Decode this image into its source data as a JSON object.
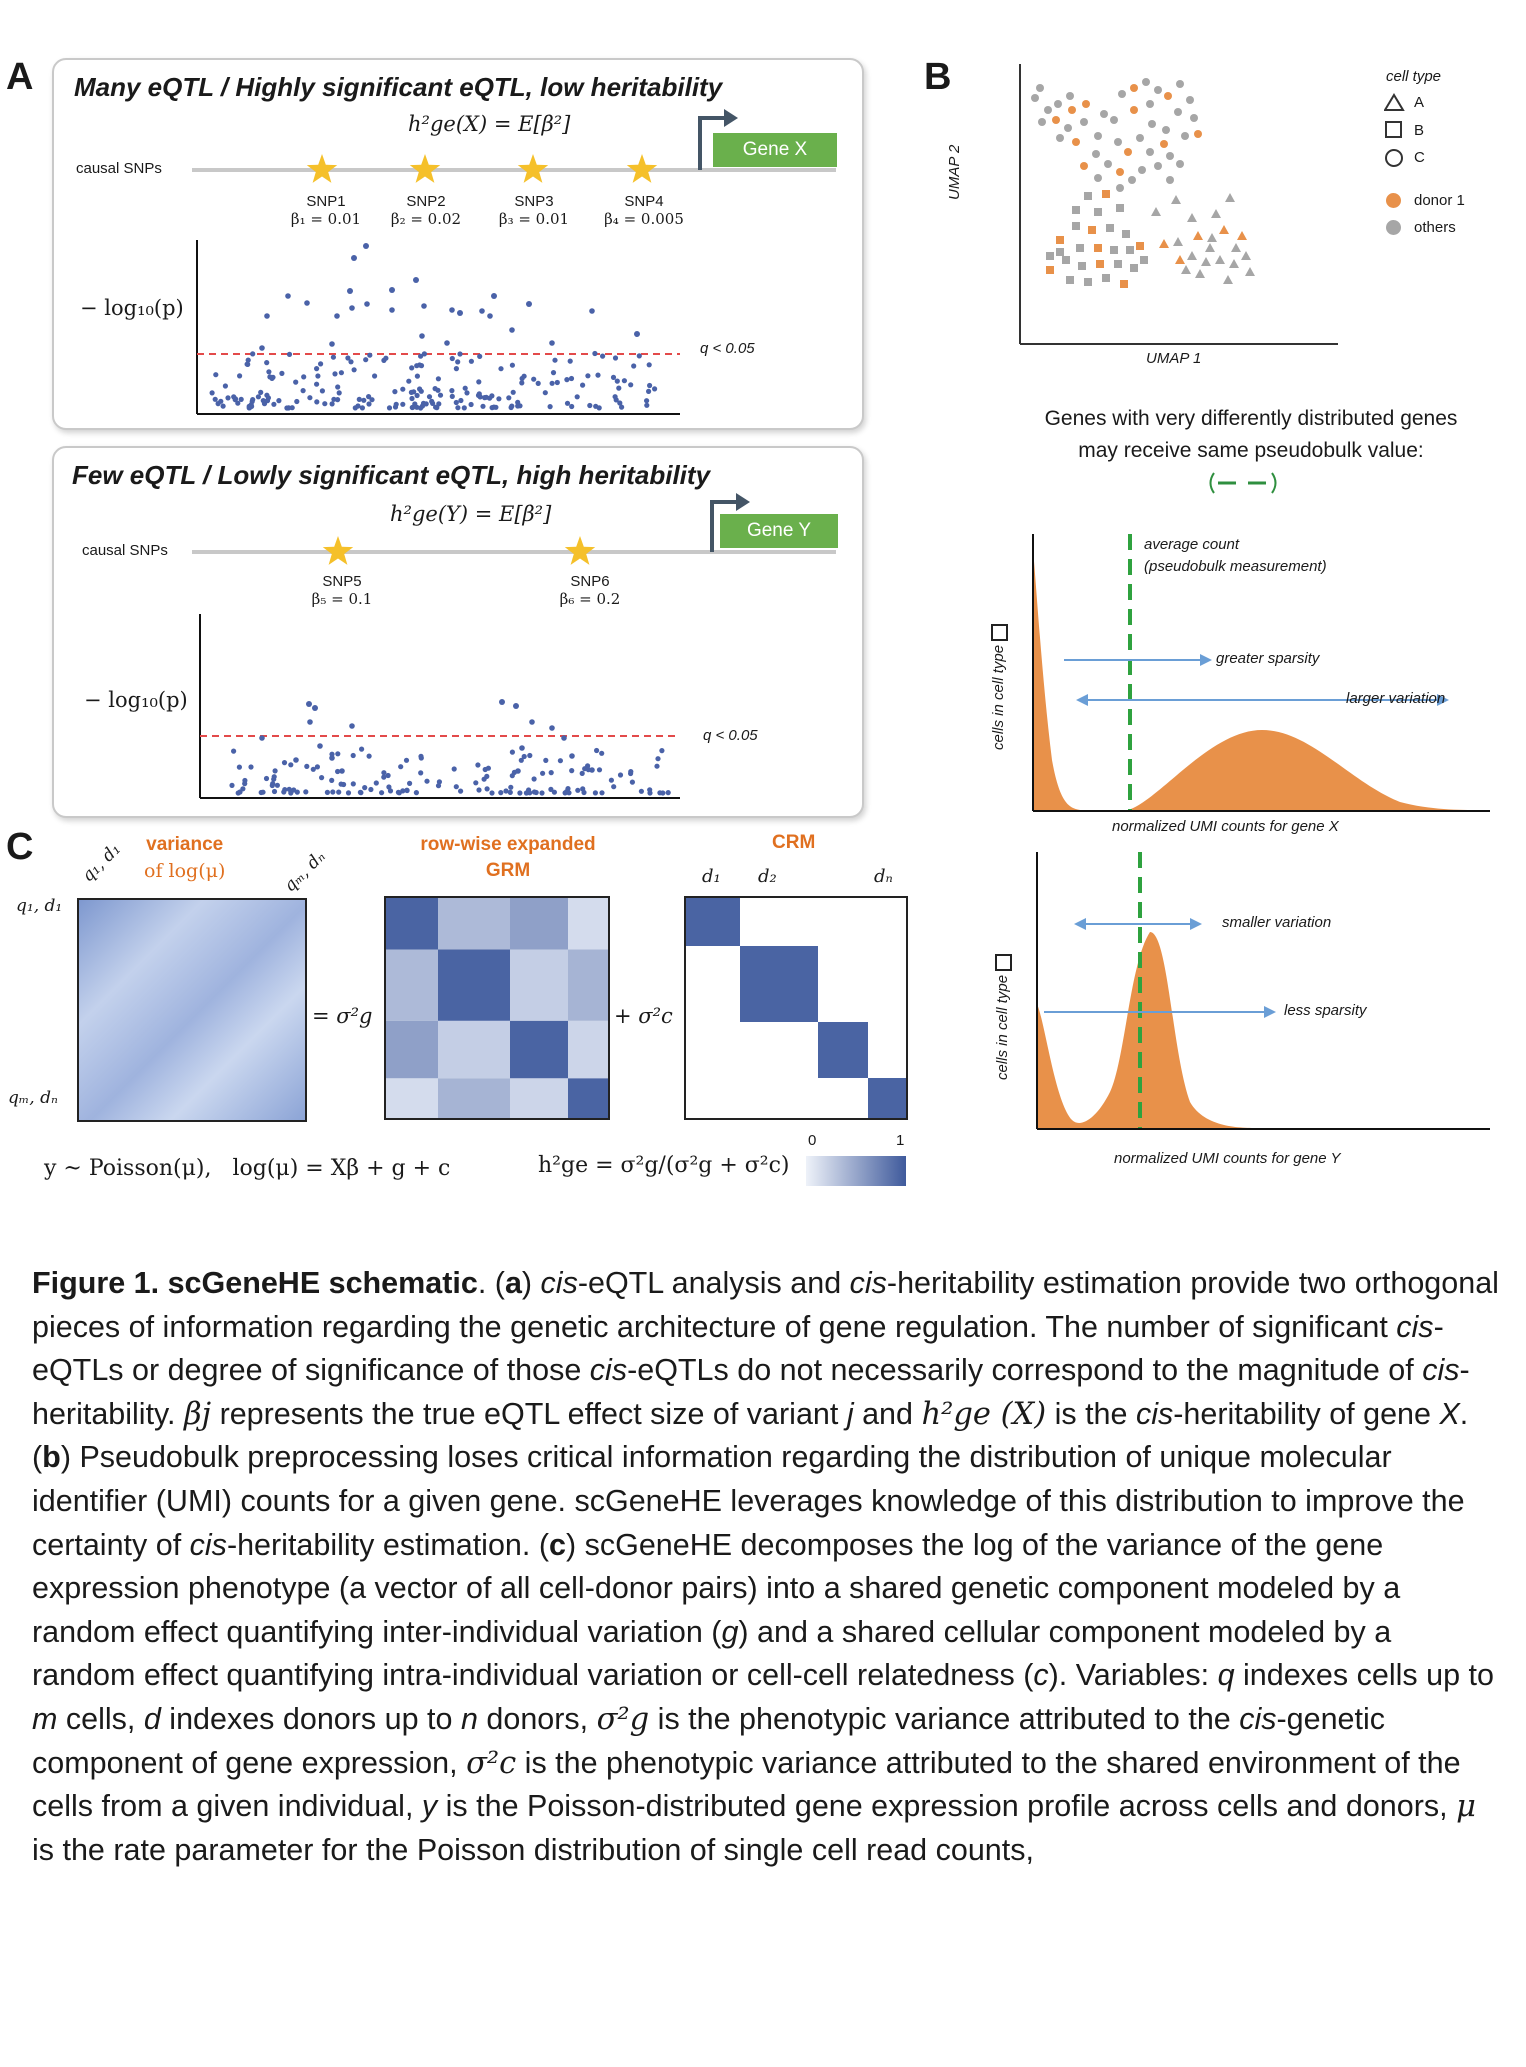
{
  "panel_letters": {
    "a": "A",
    "b": "B",
    "c": "C"
  },
  "panel_a": {
    "top": {
      "title": "Many eQTL / Highly significant eQTL, low heritability",
      "heritability_formula": "h²ge(X) = E[β²]",
      "gene_label": "Gene X",
      "causal_label": "causal SNPs",
      "snps": [
        {
          "name": "SNP1",
          "beta": "β₁ = 0.01"
        },
        {
          "name": "SNP2",
          "beta": "β₂ = 0.02"
        },
        {
          "name": "SNP3",
          "beta": "β₃ = 0.01"
        },
        {
          "name": "SNP4",
          "beta": "β₄ = 0.005"
        }
      ],
      "ylabel": "− log₁₀(p)",
      "threshold_label": "q < 0.05"
    },
    "bottom": {
      "title": "Few eQTL / Lowly significant eQTL, high heritability",
      "heritability_formula": "h²ge(Y) = E[β²]",
      "gene_label": "Gene Y",
      "causal_label": "causal SNPs",
      "snps": [
        {
          "name": "SNP5",
          "beta": "β₅ = 0.1"
        },
        {
          "name": "SNP6",
          "beta": "β₆ = 0.2"
        }
      ],
      "ylabel": "− log₁₀(p)",
      "threshold_label": "q < 0.05"
    }
  },
  "panel_b": {
    "umap": {
      "xlabel": "UMAP 1",
      "ylabel": "UMAP 2",
      "legend_celltype_title": "cell type",
      "legend_celltypes": [
        "A",
        "B",
        "C"
      ],
      "legend_donor": [
        "donor 1",
        "others"
      ],
      "colors": {
        "donor": "#e8914a",
        "others": "#a6a6a6"
      }
    },
    "heading_line1": "Genes with very differently distributed genes",
    "heading_line2": "may receive same pseudobulk value:",
    "dist_x": {
      "ylabel": "cells in cell type",
      "xlabel": "normalized UMI counts for gene X",
      "avg_label_1": "average count",
      "avg_label_2": "(pseudobulk measurement)",
      "arrow1_label": "greater sparsity",
      "arrow2_label": "larger variation"
    },
    "dist_y": {
      "ylabel": "cells in cell type",
      "xlabel": "normalized UMI counts for gene Y",
      "arrow1_label": "smaller variation",
      "arrow2_label": "less sparsity"
    }
  },
  "panel_c": {
    "variance_label_1": "variance",
    "variance_label_2": "of log(μ)",
    "grm_label_1": "row-wise expanded",
    "grm_label_2": "GRM",
    "crm_label": "CRM",
    "sigma_g": "= σ²g",
    "sigma_c": "+ σ²c",
    "idx_q1d1": "q₁, d₁",
    "idx_qmdn": "qₘ, dₙ",
    "idx_d1": "d₁",
    "idx_d2": "d₂",
    "idx_dn": "dₙ",
    "model_formula": "y ~ Poisson(μ),   log(μ) = Xβ + g + c",
    "h2_formula": "h²ge = σ²g/(σ²g + σ²c)",
    "colorbar_min": "0",
    "colorbar_max": "1",
    "colors": {
      "dark": "#4a64a3",
      "light": "#e3e9f5"
    },
    "grm_values": [
      [
        1.0,
        0.35,
        0.55,
        0.1
      ],
      [
        0.35,
        1.0,
        0.2,
        0.4
      ],
      [
        0.55,
        0.2,
        1.0,
        0.15
      ],
      [
        0.1,
        0.4,
        0.15,
        1.0
      ]
    ]
  },
  "caption": {
    "figure_label": "Figure 1. scGeneHE schematic",
    "text_1": ". (",
    "a": "a",
    "text_2": ") ",
    "cis1": "cis",
    "text_3": "-eQTL analysis and ",
    "cis2": "cis",
    "text_4": "-heritability estimation provide two orthogonal pieces of information regarding the genetic architecture of gene regulation. The number of significant ",
    "cis3": "cis",
    "text_5": "-eQTLs or degree of significance of those ",
    "cis4": "cis",
    "text_6": "-eQTLs do not necessarily correspond to the magnitude of ",
    "cis5": "cis",
    "text_7": "-heritability. ",
    "beta_j": "βj",
    "text_8": " represents the true eQTL effect size of variant ",
    "j": "j",
    "text_9": " and ",
    "h2ge": "h²ge (X)",
    "text_10": " is the ",
    "cis6": "cis",
    "text_11": "-heritability of gene ",
    "X": "X",
    "text_12": ". (",
    "b": "b",
    "text_13": ") Pseudobulk preprocessing loses critical information regarding the distribution of unique molecular identifier (UMI) counts for a given gene. scGeneHE leverages knowledge of this distribution to improve the certainty of ",
    "cis7": "cis",
    "text_14": "-heritability estimation. (",
    "c": "c",
    "text_15": ") scGeneHE decomposes the log of the variance of the gene expression phenotype (a vector of all cell-donor pairs) into a shared genetic component modeled by a random effect quantifying inter-individual variation (",
    "g": "g",
    "text_16": ") and a shared cellular component modeled by a random effect quantifying intra-individual variation or cell-cell relatedness (",
    "c2": "c",
    "text_17": "). Variables: ",
    "q": "q",
    "text_18": " indexes cells up to ",
    "m": "m",
    "text_19": " cells, ",
    "d": "d",
    "text_20": " indexes donors up to ",
    "n": "n",
    "text_21": " donors, ",
    "sg": "σ²g",
    "text_22": " is the phenotypic variance attributed to the ",
    "cis8": "cis",
    "text_23": "-genetic component of gene expression, ",
    "sc": "σ²c",
    "text_24": " is the phenotypic variance attributed to the shared environment of the cells from a given individual, ",
    "y": "y",
    "text_25": " is the Poisson-distributed gene expression profile across cells and donors, ",
    "mu": "μ",
    "text_26": " is the rate parameter for the Poisson distribution of single cell read counts,"
  }
}
